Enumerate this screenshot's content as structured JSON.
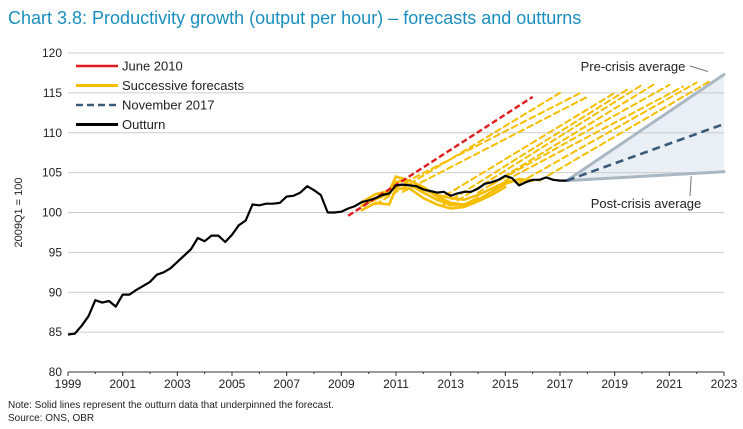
{
  "title": "Chart 3.8: Productivity growth (output per hour) – forecasts and outturns",
  "note": "Note: Solid lines represent the outturn data that underpinned the forecast.",
  "source": "Source: ONS, OBR",
  "chart_data": {
    "type": "line",
    "title": "Chart 3.8: Productivity growth (output per hour) – forecasts and outturns",
    "ylabel": "2009Q1 = 100",
    "xlabel": "",
    "xlim": [
      1999,
      2023
    ],
    "ylim": [
      80,
      120
    ],
    "x_ticks": [
      "1999",
      "2001",
      "2003",
      "2005",
      "2007",
      "2009",
      "2011",
      "2013",
      "2015",
      "2017",
      "2019",
      "2021",
      "2023"
    ],
    "y_ticks": [
      "80",
      "85",
      "90",
      "95",
      "100",
      "105",
      "110",
      "115",
      "120"
    ],
    "grid": "horizontal",
    "legend_position": "top-left",
    "legend": [
      "June 2010",
      "Successive forecasts",
      "November 2017",
      "Outturn"
    ],
    "annotations": [
      {
        "text": "Pre-crisis average",
        "points_to": [
          2023,
          117.3
        ]
      },
      {
        "text": "Post-crisis average",
        "points_to": [
          2021.8,
          104.8
        ]
      }
    ],
    "colors": {
      "title": "#1a8fbf",
      "june2010": "#e31a1c",
      "successive": "#f5be00",
      "nov2017": "#3a5a7a",
      "outturn": "#000000",
      "band": "#e9eff4",
      "band_edge": "#aab8c4",
      "grid": "#cccccc"
    },
    "series": [
      {
        "name": "Outturn",
        "style": "solid",
        "x": [
          1999.0,
          1999.25,
          1999.5,
          1999.75,
          2000.0,
          2000.25,
          2000.5,
          2000.75,
          2001.0,
          2001.25,
          2001.5,
          2001.75,
          2002.0,
          2002.25,
          2002.5,
          2002.75,
          2003.0,
          2003.25,
          2003.5,
          2003.75,
          2004.0,
          2004.25,
          2004.5,
          2004.75,
          2005.0,
          2005.25,
          2005.5,
          2005.75,
          2006.0,
          2006.25,
          2006.5,
          2006.75,
          2007.0,
          2007.25,
          2007.5,
          2007.75,
          2008.0,
          2008.25,
          2008.5,
          2008.75,
          2009.0,
          2009.25,
          2009.5,
          2009.75,
          2010.0,
          2010.25,
          2010.5,
          2010.75,
          2011.0,
          2011.25,
          2011.5,
          2011.75,
          2012.0,
          2012.25,
          2012.5,
          2012.75,
          2013.0,
          2013.25,
          2013.5,
          2013.75,
          2014.0,
          2014.25,
          2014.5,
          2014.75,
          2015.0,
          2015.25,
          2015.5,
          2015.75,
          2016.0,
          2016.25,
          2016.5,
          2016.75,
          2017.0,
          2017.25
        ],
        "y": [
          84.7,
          84.8,
          85.8,
          87.0,
          89.0,
          88.7,
          88.9,
          88.2,
          89.7,
          89.7,
          90.3,
          90.8,
          91.3,
          92.2,
          92.5,
          93.0,
          93.8,
          94.6,
          95.4,
          96.8,
          96.4,
          97.1,
          97.1,
          96.3,
          97.2,
          98.4,
          99.0,
          101.0,
          100.9,
          101.1,
          101.1,
          101.2,
          102.0,
          102.1,
          102.5,
          103.3,
          102.8,
          102.2,
          100.0,
          100.0,
          100.1,
          100.5,
          100.8,
          101.3,
          101.5,
          101.8,
          102.2,
          102.4,
          103.4,
          103.5,
          103.4,
          103.3,
          102.9,
          102.7,
          102.5,
          102.6,
          102.1,
          102.4,
          102.6,
          102.6,
          103.0,
          103.6,
          103.8,
          104.1,
          104.6,
          104.3,
          103.4,
          103.8,
          104.1,
          104.1,
          104.4,
          104.1,
          104.0,
          104.0
        ]
      },
      {
        "name": "June 2010",
        "style": "dashed",
        "x": [
          2009.25,
          2016.0
        ],
        "y": [
          99.6,
          114.5
        ]
      },
      {
        "name": "November 2017",
        "style": "dashed",
        "x": [
          2017.25,
          2023.0
        ],
        "y": [
          104.0,
          111.1
        ]
      },
      {
        "name": "Pre-crisis average",
        "style": "band-edge",
        "x": [
          2017.25,
          2023.0
        ],
        "y": [
          104.0,
          117.3
        ]
      },
      {
        "name": "Post-crisis average",
        "style": "band-edge",
        "x": [
          2017.25,
          2023.0
        ],
        "y": [
          104.0,
          105.1
        ]
      },
      {
        "name": "Successive forecasts",
        "style": "dashed",
        "group": "successive",
        "x": [
          2010.25,
          2017.0
        ],
        "y": [
          101.0,
          115.0
        ]
      },
      {
        "name": "Successive forecasts",
        "style": "dashed",
        "group": "successive",
        "x": [
          2011.0,
          2017.75
        ],
        "y": [
          103.2,
          115.0
        ]
      },
      {
        "name": "Successive forecasts",
        "style": "dashed",
        "group": "successive",
        "x": [
          2011.25,
          2018.0
        ],
        "y": [
          102.6,
          114.5
        ]
      },
      {
        "name": "Successive forecasts",
        "style": "dashed",
        "group": "successive",
        "x": [
          2012.5,
          2019.0
        ],
        "y": [
          101.5,
          115.0
        ]
      },
      {
        "name": "Successive forecasts",
        "style": "dashed",
        "group": "successive",
        "x": [
          2012.75,
          2019.5
        ],
        "y": [
          101.0,
          115.5
        ]
      },
      {
        "name": "Successive forecasts",
        "style": "dashed",
        "group": "successive",
        "x": [
          2013.25,
          2020.0
        ],
        "y": [
          101.5,
          116.0
        ]
      },
      {
        "name": "Successive forecasts",
        "style": "dashed",
        "group": "successive",
        "x": [
          2014.0,
          2020.5
        ],
        "y": [
          102.5,
          116.2
        ]
      },
      {
        "name": "Successive forecasts",
        "style": "dashed",
        "group": "successive",
        "x": [
          2014.5,
          2021.0
        ],
        "y": [
          103.5,
          116.0
        ]
      },
      {
        "name": "Successive forecasts",
        "style": "dashed",
        "group": "successive",
        "x": [
          2015.0,
          2021.5
        ],
        "y": [
          104.0,
          115.8
        ]
      },
      {
        "name": "Successive forecasts",
        "style": "dashed",
        "group": "successive",
        "x": [
          2015.5,
          2022.0
        ],
        "y": [
          103.7,
          116.3
        ]
      },
      {
        "name": "Successive forecasts",
        "style": "dashed",
        "group": "successive",
        "x": [
          2016.25,
          2022.5
        ],
        "y": [
          104.0,
          116.5
        ]
      },
      {
        "name": "Successive forecasts",
        "style": "solid",
        "group": "successive",
        "x": [
          2009.75,
          2010.25,
          2010.75,
          2011.0,
          2011.25,
          2011.5,
          2012.0,
          2012.5,
          2013.0,
          2013.5,
          2014.0,
          2014.5,
          2015.0,
          2015.5,
          2016.0
        ],
        "y": [
          100.8,
          101.8,
          102.3,
          103.8,
          104.0,
          103.5,
          102.9,
          102.2,
          101.8,
          101.6,
          102.2,
          103.0,
          103.8,
          104.1,
          104.0
        ]
      },
      {
        "name": "Successive forecasts",
        "style": "solid",
        "group": "successive",
        "x": [
          2009.75,
          2010.25,
          2010.75,
          2011.0,
          2011.5,
          2012.0,
          2012.5,
          2013.0,
          2013.5,
          2014.0,
          2014.5,
          2015.0,
          2015.5,
          2016.0
        ],
        "y": [
          101.3,
          102.3,
          102.7,
          104.5,
          104.0,
          103.2,
          102.0,
          101.2,
          101.0,
          101.6,
          102.6,
          103.6,
          104.2,
          104.0
        ]
      },
      {
        "name": "Successive forecasts",
        "style": "solid",
        "group": "successive",
        "x": [
          2009.75,
          2010.25,
          2010.75,
          2011.0,
          2011.5,
          2012.0,
          2012.5,
          2013.0,
          2013.5,
          2014.0,
          2014.5,
          2015.0
        ],
        "y": [
          100.3,
          101.2,
          101.0,
          103.0,
          103.0,
          101.8,
          101.0,
          100.5,
          100.7,
          101.4,
          102.2,
          103.2
        ]
      },
      {
        "name": "Successive forecasts",
        "style": "solid",
        "group": "successive",
        "x": [
          2009.75,
          2010.5,
          2011.0,
          2011.5,
          2012.0,
          2012.5,
          2013.0,
          2013.5,
          2014.0
        ],
        "y": [
          100.9,
          102.0,
          103.4,
          103.5,
          102.5,
          101.6,
          100.9,
          101.0,
          101.8
        ]
      }
    ]
  }
}
